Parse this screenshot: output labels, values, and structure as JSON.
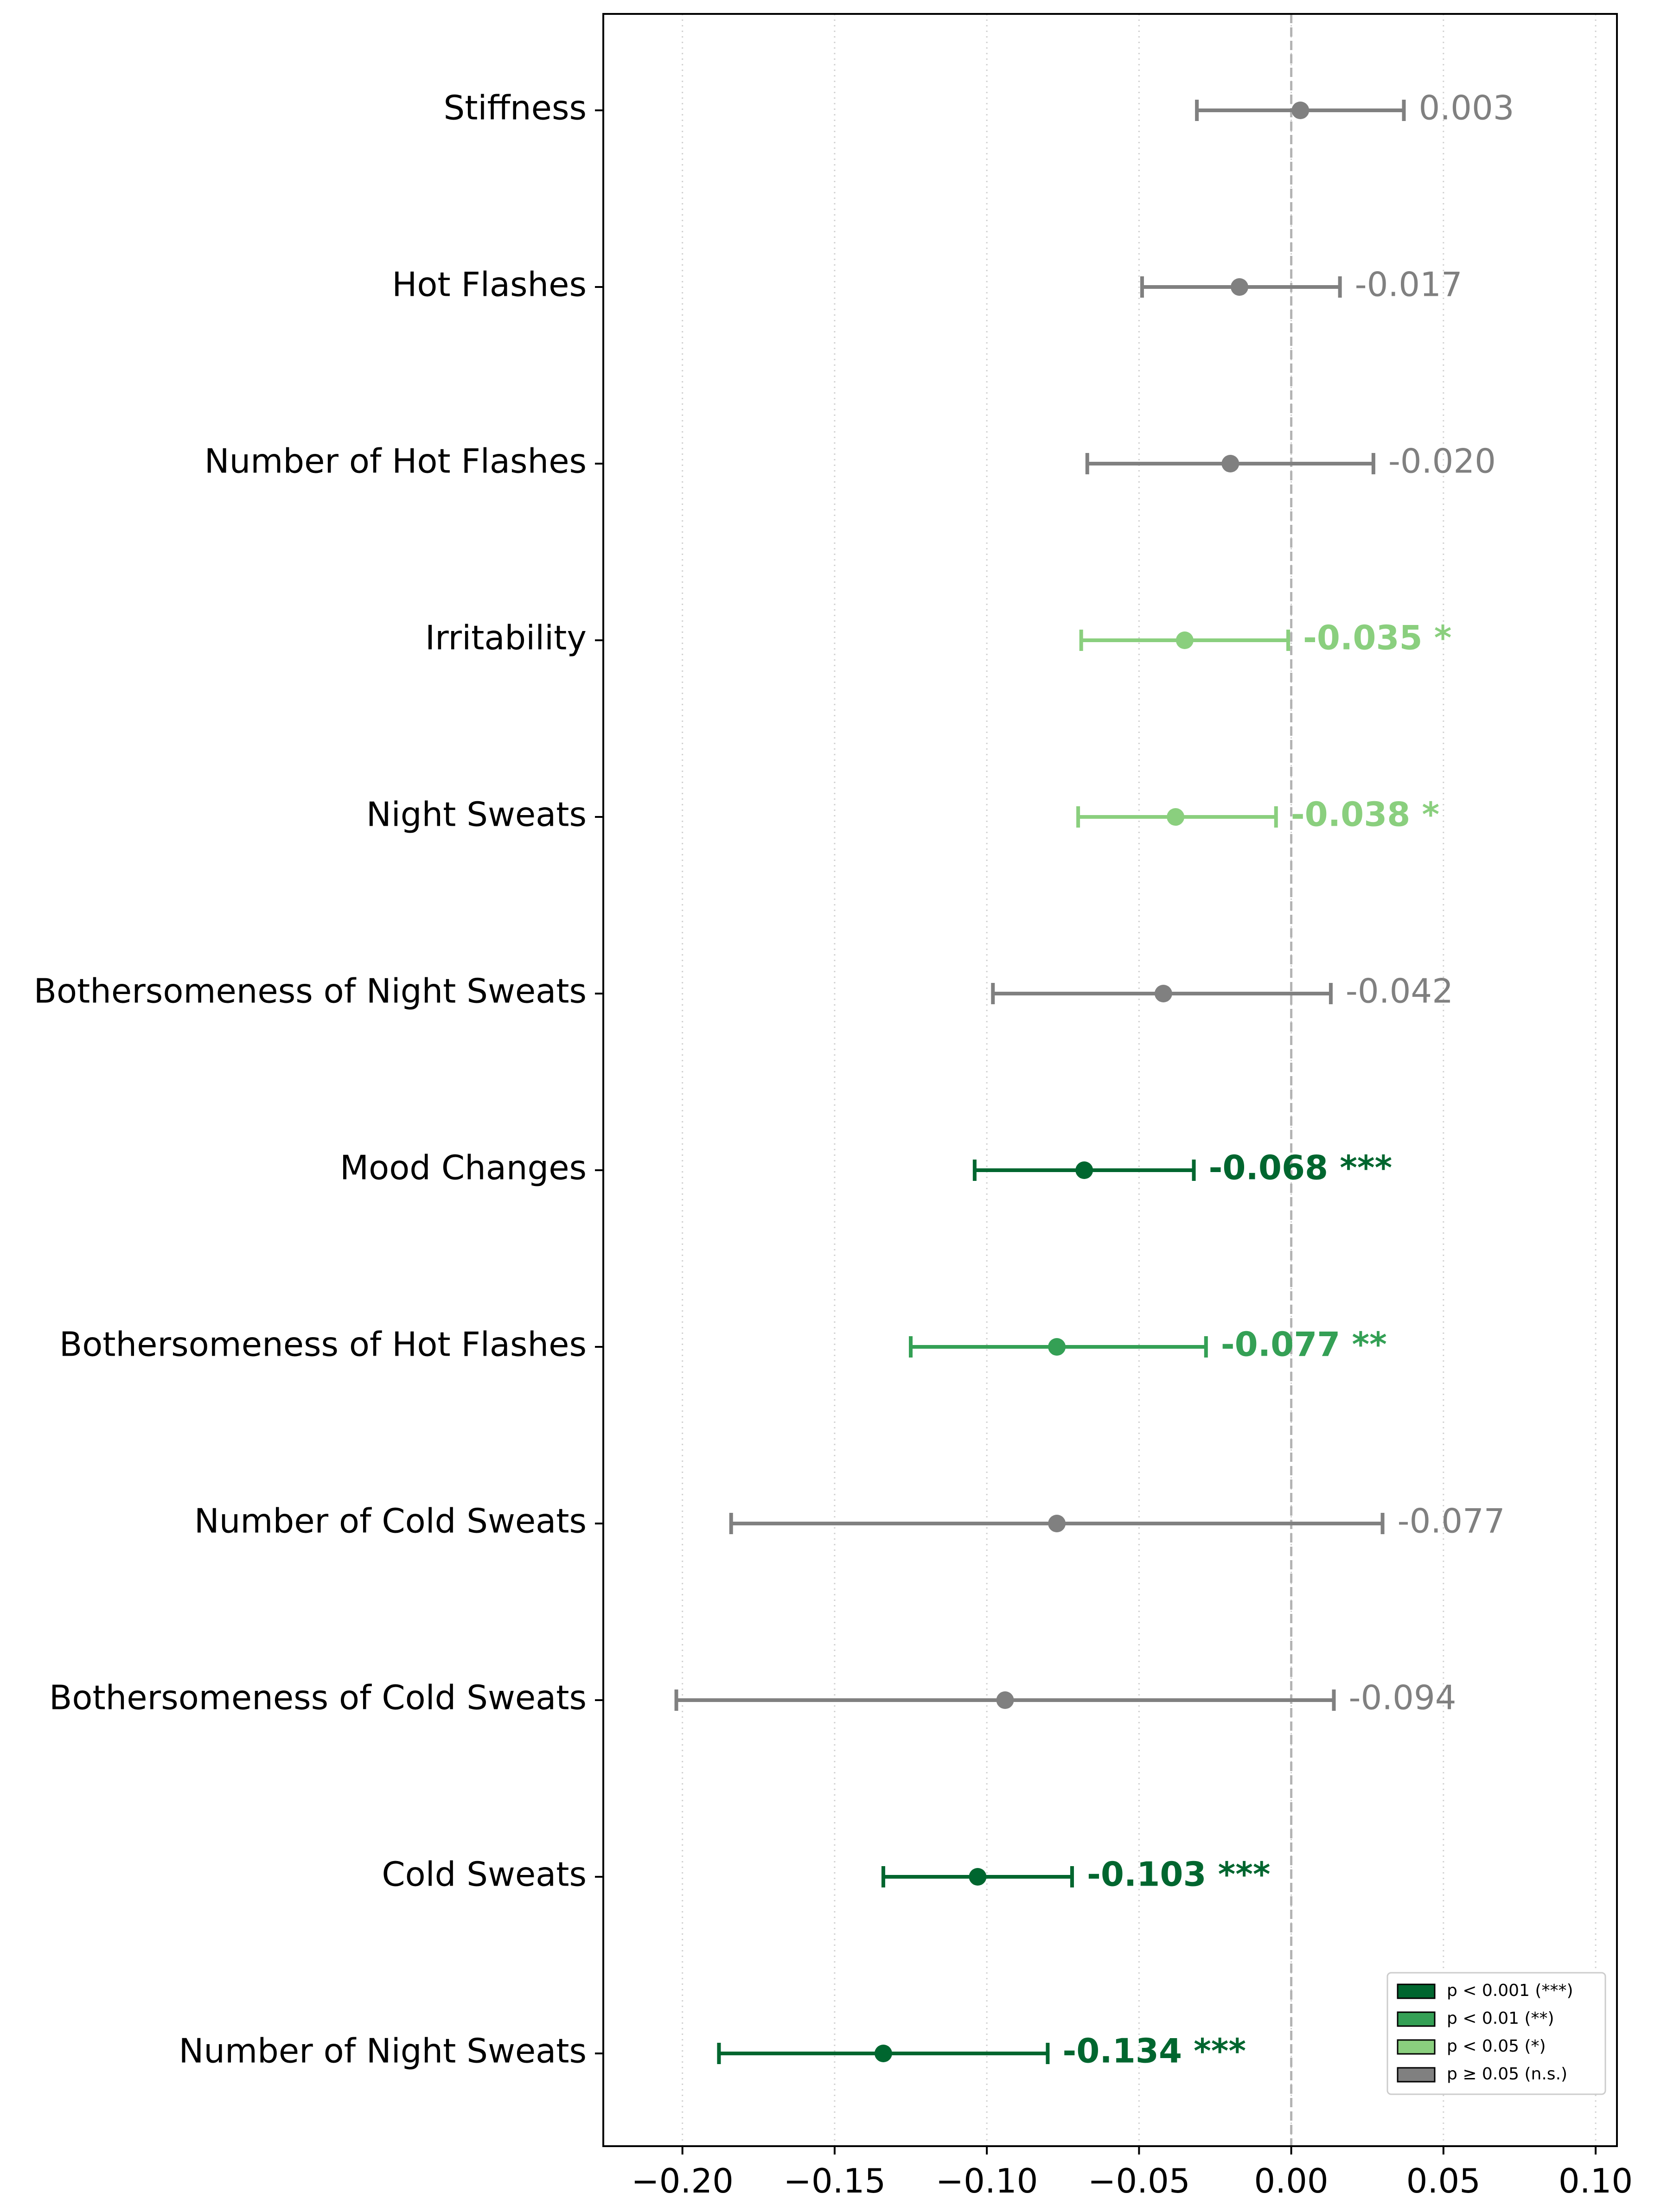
{
  "chart_data": {
    "type": "forest",
    "title": "",
    "xlabel": "",
    "ylabel": "",
    "xlim": [
      -0.226,
      0.107
    ],
    "xticks": [
      -0.2,
      -0.15,
      -0.1,
      -0.05,
      0.0,
      0.05,
      0.1
    ],
    "xtick_labels": [
      "−0.20",
      "−0.15",
      "−0.10",
      "−0.05",
      "0.00",
      "0.05",
      "0.10"
    ],
    "reference_line": 0.0,
    "grid": "vertical-dotted",
    "legend_position": "lower-right",
    "colors": {
      "p001": "#00662f",
      "p01": "#34a055",
      "p05": "#8acf7e",
      "ns": "#808080"
    },
    "legend": [
      {
        "key": "p001",
        "label": "p < 0.001 (***)"
      },
      {
        "key": "p01",
        "label": "p < 0.01 (**)"
      },
      {
        "key": "p05",
        "label": "p < 0.05 (*)"
      },
      {
        "key": "ns",
        "label": "p ≥ 0.05 (n.s.)"
      }
    ],
    "rows": [
      {
        "label": "Stiffness",
        "estimate": 0.003,
        "ci_low": -0.031,
        "ci_high": 0.037,
        "sig": "ns",
        "value_text": "0.003"
      },
      {
        "label": "Hot Flashes",
        "estimate": -0.017,
        "ci_low": -0.049,
        "ci_high": 0.016,
        "sig": "ns",
        "value_text": "-0.017"
      },
      {
        "label": "Number of Hot Flashes",
        "estimate": -0.02,
        "ci_low": -0.067,
        "ci_high": 0.027,
        "sig": "ns",
        "value_text": "-0.020"
      },
      {
        "label": "Irritability",
        "estimate": -0.035,
        "ci_low": -0.069,
        "ci_high": -0.001,
        "sig": "p05",
        "value_text": "-0.035 *"
      },
      {
        "label": "Night Sweats",
        "estimate": -0.038,
        "ci_low": -0.07,
        "ci_high": -0.005,
        "sig": "p05",
        "value_text": "-0.038 *"
      },
      {
        "label": "Bothersomeness of Night Sweats",
        "estimate": -0.042,
        "ci_low": -0.098,
        "ci_high": 0.013,
        "sig": "ns",
        "value_text": "-0.042"
      },
      {
        "label": "Mood Changes",
        "estimate": -0.068,
        "ci_low": -0.104,
        "ci_high": -0.032,
        "sig": "p001",
        "value_text": "-0.068 ***"
      },
      {
        "label": "Bothersomeness of Hot Flashes",
        "estimate": -0.077,
        "ci_low": -0.125,
        "ci_high": -0.028,
        "sig": "p01",
        "value_text": "-0.077 **"
      },
      {
        "label": "Number of Cold Sweats",
        "estimate": -0.077,
        "ci_low": -0.184,
        "ci_high": 0.03,
        "sig": "ns",
        "value_text": "-0.077"
      },
      {
        "label": "Bothersomeness of Cold Sweats",
        "estimate": -0.094,
        "ci_low": -0.202,
        "ci_high": 0.014,
        "sig": "ns",
        "value_text": "-0.094"
      },
      {
        "label": "Cold Sweats",
        "estimate": -0.103,
        "ci_low": -0.134,
        "ci_high": -0.072,
        "sig": "p001",
        "value_text": "-0.103 ***"
      },
      {
        "label": "Number of Night Sweats",
        "estimate": -0.134,
        "ci_low": -0.188,
        "ci_high": -0.08,
        "sig": "p001",
        "value_text": "-0.134 ***"
      }
    ]
  }
}
